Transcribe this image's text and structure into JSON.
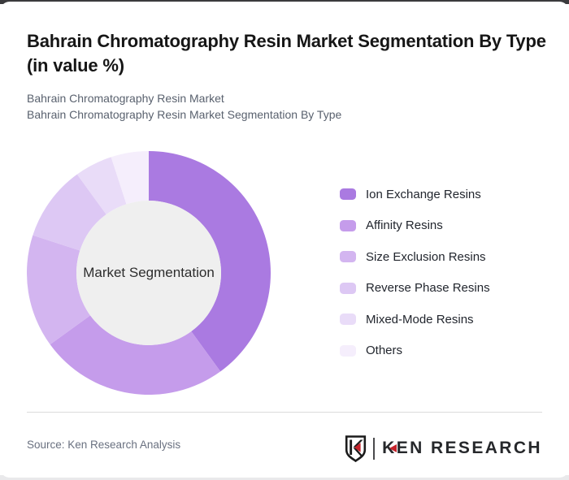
{
  "page": {
    "title": "Bahrain Chromatography Resin Market Segmentation By Type (in value %)",
    "subtitle_line1": "Bahrain Chromatography Resin Market",
    "subtitle_line2": "Bahrain Chromatography Resin Market Segmentation By Type",
    "source": "Source: Ken Research Analysis"
  },
  "logo": {
    "brand_first_letter": "K",
    "brand_rest": "EN RESEARCH",
    "accent_red": "#c5232b",
    "ink": "#26282b"
  },
  "chart_data": {
    "type": "pie",
    "subtype": "donut",
    "title": "Bahrain Chromatography Resin Market Segmentation By Type (in value %)",
    "unit": "value %",
    "center_label": "Market Segmentation",
    "center_fill": "#efefef",
    "start_angle_deg": 0,
    "direction": "clockwise",
    "inner_radius_ratio": 0.59,
    "legend_position": "right",
    "segments": [
      {
        "label": "Ion Exchange Resins",
        "value": 40,
        "color": "#aa7ae1"
      },
      {
        "label": "Affinity Resins",
        "value": 25,
        "color": "#c59ceb"
      },
      {
        "label": "Size Exclusion Resins",
        "value": 15,
        "color": "#d3b5f0"
      },
      {
        "label": "Reverse Phase Resins",
        "value": 10,
        "color": "#ddc8f4"
      },
      {
        "label": "Mixed-Mode Resins",
        "value": 5,
        "color": "#e9dcf8"
      },
      {
        "label": "Others",
        "value": 5,
        "color": "#f5eefc"
      }
    ]
  }
}
